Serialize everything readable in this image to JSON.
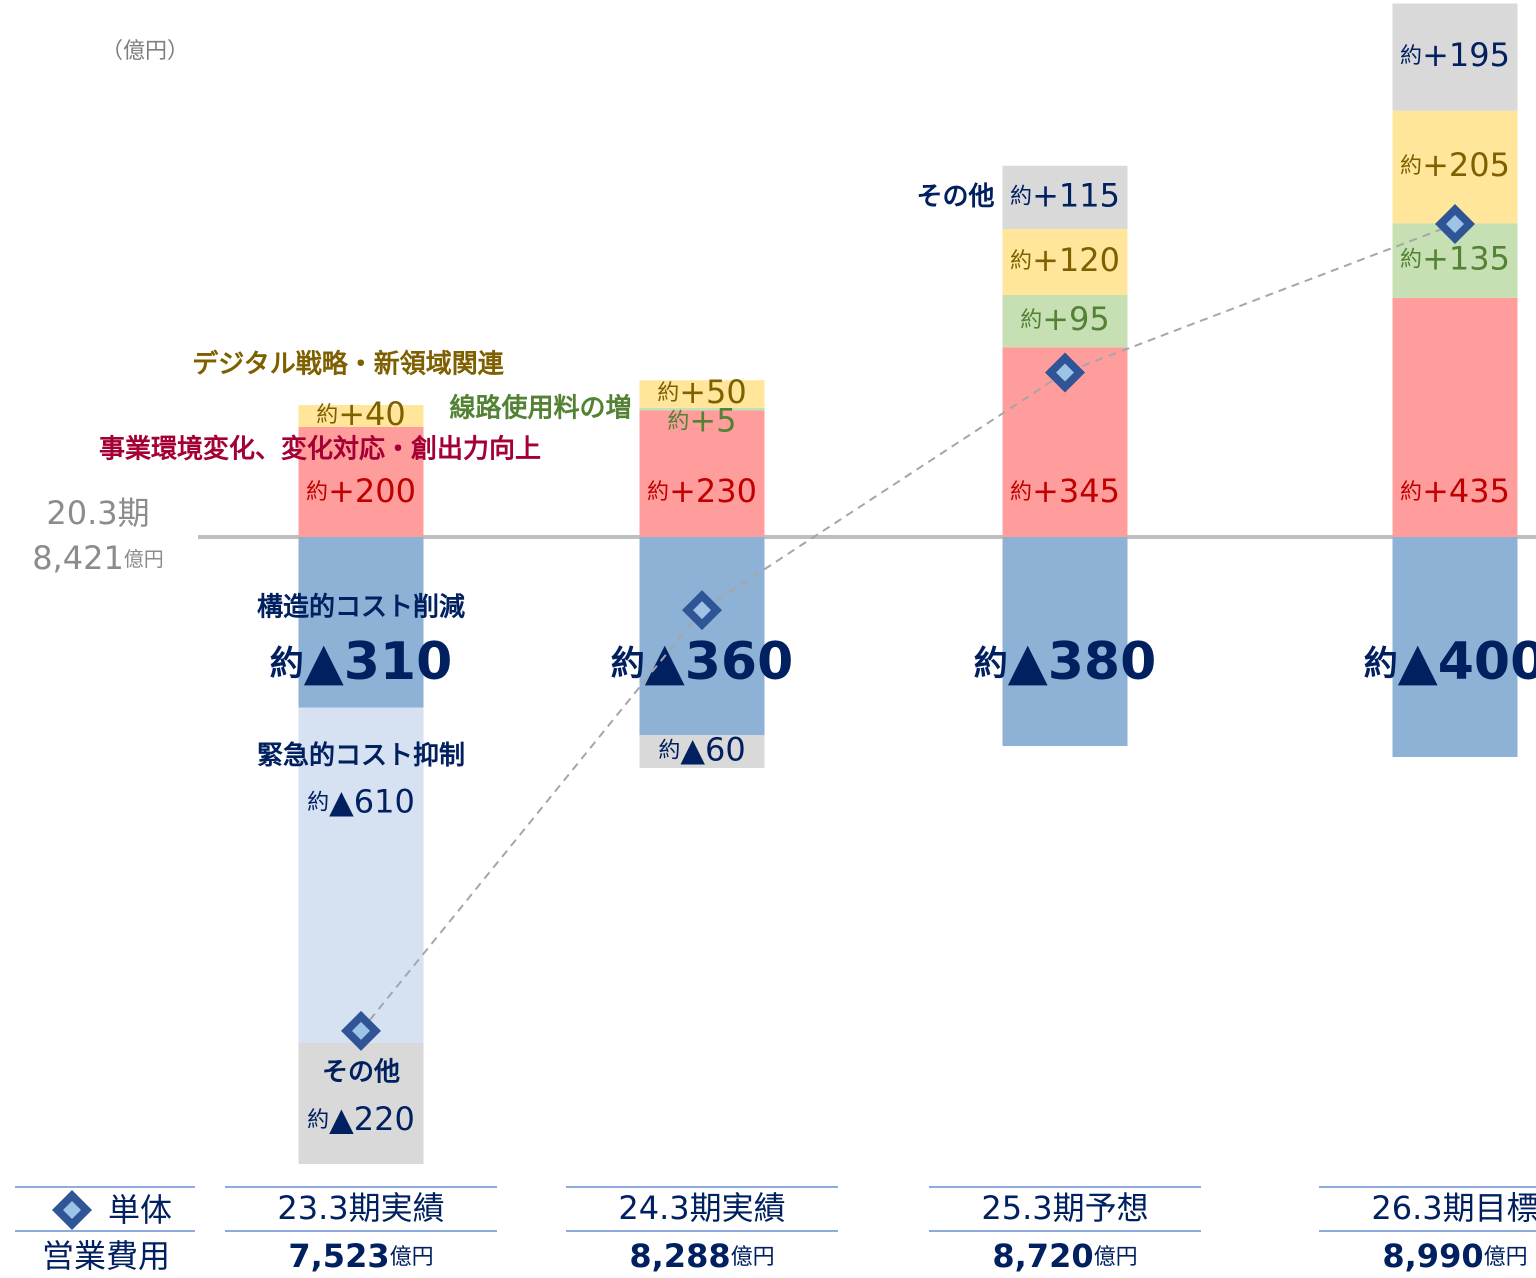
{
  "chart_data": {
    "type": "bar",
    "unit_label": "（億円）",
    "approx_prefix": "約",
    "total_unit": "億円",
    "baseline": {
      "label": "20.3期",
      "value": 8421,
      "value_label": "8,421"
    },
    "categories": [
      "23.3期実績",
      "24.3期実績",
      "25.3期予想",
      "26.3期目標"
    ],
    "totals": {
      "legend_label": [
        "単体",
        "営業費用"
      ],
      "values": [
        7523,
        8288,
        8720,
        8990
      ],
      "value_labels": [
        "7,523",
        "8,288",
        "8,720",
        "8,990"
      ],
      "color": "#2f5597"
    },
    "series": [
      {
        "name": "構造的コスト削減",
        "color": "#8eb1d6",
        "text_color": "#002060",
        "values": [
          -310,
          -360,
          -380,
          -400
        ],
        "value_labels": [
          "▲310",
          "▲360",
          "▲380",
          "▲400"
        ]
      },
      {
        "name": "緊急的コスト抑制",
        "color": "#d6e1f1",
        "text_color": "#002060",
        "values": [
          -610,
          null,
          null,
          null
        ],
        "value_labels": [
          "▲610",
          null,
          null,
          null
        ]
      },
      {
        "name": "その他",
        "color": "#d9d9d9",
        "text_color": "#002060",
        "values": [
          -220,
          -60,
          null,
          null
        ],
        "value_labels": [
          "▲220",
          "▲60",
          null,
          null
        ]
      },
      {
        "name": "事業環境変化、変化対応・創出力向上",
        "color": "#ff9d9d",
        "text_color": "#c00000",
        "name_color": "#a50034",
        "values": [
          200,
          230,
          345,
          435
        ],
        "value_labels": [
          "+200",
          "+230",
          "+345",
          "+435"
        ]
      },
      {
        "name": "線路使用料の増",
        "color": "#c6e0b4",
        "text_color": "#548235",
        "values": [
          null,
          5,
          95,
          135
        ],
        "value_labels": [
          null,
          "+5",
          "+95",
          "+135"
        ]
      },
      {
        "name": "デジタル戦略・新領域関連",
        "color": "#ffe69a",
        "text_color": "#7f6000",
        "values": [
          40,
          50,
          120,
          205
        ],
        "value_labels": [
          "+40",
          "+50",
          "+120",
          "+205"
        ]
      },
      {
        "name": "その他",
        "color": "#d9d9d9",
        "text_color": "#002060",
        "values": [
          null,
          null,
          115,
          195
        ],
        "value_labels": [
          null,
          null,
          "+115",
          "+195"
        ]
      }
    ]
  }
}
